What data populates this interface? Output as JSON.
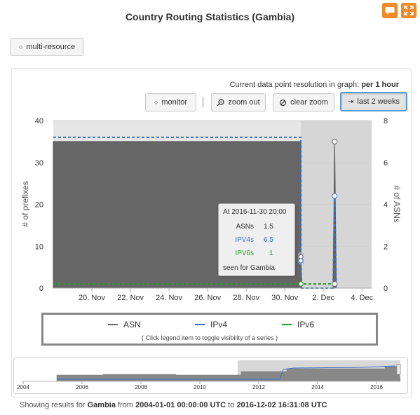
{
  "header": {
    "title": "Country Routing Statistics (Gambia)",
    "comment_icon": "speech-bubble-icon",
    "fullscreen_icon": "expand-icon"
  },
  "toolbar_top": {
    "multi_resource_label": "multi-resource"
  },
  "graph_controls": {
    "resolution_prefix": "Current data point resolution in graph:",
    "resolution_value": "per 1 hour",
    "monitor_label": "monitor",
    "zoom_out_label": "zoom out",
    "clear_zoom_label": "clear zoom",
    "last_two_weeks_label": "last 2 weeks"
  },
  "tooltip": {
    "title": "At 2016-11-30 20:00",
    "rows": [
      {
        "label": "ASNs",
        "value": "1.5"
      },
      {
        "label": "IPV4s",
        "value": "6.5"
      },
      {
        "label": "IPV6s",
        "value": "1"
      }
    ],
    "footer": "seen for Gambia"
  },
  "legend": {
    "items": [
      {
        "label": "ASN",
        "color": "#666666"
      },
      {
        "label": "IPv4",
        "color": "#3b6fc4"
      },
      {
        "label": "IPv6",
        "color": "#2e9b2e"
      }
    ],
    "hint": "( Click legend item to toggle visibility of a series )"
  },
  "footer": {
    "prefix": "Showing results for",
    "country": "Gambia",
    "from_word": "from",
    "start": "2004-01-01 00:00:00 UTC",
    "to_word": "to",
    "end": "2016-12-02 16:31:08 UTC"
  },
  "chart_data": {
    "type": "area",
    "ylabel": "# of prefixes",
    "y2label": "# of ASNs",
    "ylim": [
      0,
      40
    ],
    "y2lim": [
      0,
      8
    ],
    "yticks": [
      "0",
      "10",
      "20",
      "30",
      "40"
    ],
    "y2ticks": [
      "0",
      "2",
      "4",
      "6",
      "8"
    ],
    "xticks": [
      "20. Nov",
      "22. Nov",
      "24. Nov",
      "26. Nov",
      "28. Nov",
      "30. Nov",
      "2. Dec",
      "4. Dec"
    ],
    "series": [
      {
        "name": "ASN",
        "axis": "right",
        "color": "#666666",
        "points": [
          [
            "2016-11-18",
            7
          ],
          [
            "2016-11-30 20:00",
            7
          ],
          [
            "2016-11-30 20:00",
            1.5
          ],
          [
            "2016-11-30 21:00",
            0
          ],
          [
            "2016-12-02 12:00",
            0
          ],
          [
            "2016-12-02 14:00",
            7
          ],
          [
            "2016-12-02 16:00",
            0
          ]
        ]
      },
      {
        "name": "IPv4",
        "axis": "left",
        "color": "#3b6fc4",
        "points": [
          [
            "2016-11-18",
            36
          ],
          [
            "2016-11-30 20:00",
            36
          ],
          [
            "2016-11-30 20:00",
            6.5
          ],
          [
            "2016-11-30 21:00",
            0
          ],
          [
            "2016-12-02 12:00",
            0
          ],
          [
            "2016-12-02 14:00",
            22
          ],
          [
            "2016-12-02 16:00",
            0
          ]
        ]
      },
      {
        "name": "IPv6",
        "axis": "left",
        "color": "#2e9b2e",
        "points": [
          [
            "2016-11-18",
            1
          ],
          [
            "2016-11-30 20:00",
            1
          ],
          [
            "2016-12-02 12:00",
            1
          ],
          [
            "2016-12-02 14:00",
            0
          ]
        ]
      }
    ],
    "navigator": {
      "xticks": [
        "2004",
        "2006",
        "2008",
        "2010",
        "2012",
        "2014",
        "2016"
      ]
    }
  }
}
